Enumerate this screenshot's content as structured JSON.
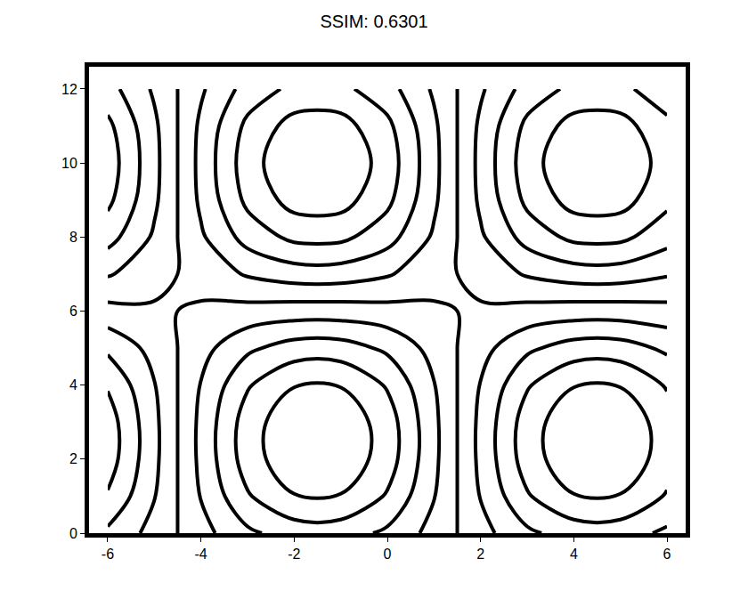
{
  "chart_data": {
    "type": "contour",
    "title": "SSIM: 0.6301",
    "color": "#000000",
    "x": [
      -6,
      -5,
      -4,
      -3,
      -2,
      -1,
      0,
      1,
      2,
      3,
      4,
      5,
      6
    ],
    "y": [
      0,
      1,
      2,
      3,
      4,
      5,
      6,
      7,
      8,
      9,
      10,
      11,
      12
    ],
    "z": [
      [
        0.36,
        0.13,
        -0.13,
        -0.36,
        -0.49,
        -0.49,
        -0.36,
        -0.13,
        0.13,
        0.36,
        0.49,
        0.49,
        0.36
      ],
      [
        0.58,
        0.21,
        -0.21,
        -0.58,
        -0.79,
        -0.79,
        -0.58,
        -0.21,
        0.21,
        0.58,
        0.79,
        0.79,
        0.58
      ],
      [
        0.7,
        0.25,
        -0.25,
        -0.7,
        -0.95,
        -0.95,
        -0.7,
        -0.25,
        0.25,
        0.7,
        0.95,
        0.95,
        0.7
      ],
      [
        0.7,
        0.25,
        -0.25,
        -0.7,
        -0.95,
        -0.95,
        -0.7,
        -0.25,
        0.25,
        0.7,
        0.95,
        0.95,
        0.7
      ],
      [
        0.58,
        0.21,
        -0.21,
        -0.58,
        -0.79,
        -0.79,
        -0.58,
        -0.21,
        0.21,
        0.58,
        0.79,
        0.79,
        0.58
      ],
      [
        0.36,
        0.13,
        -0.13,
        -0.36,
        -0.49,
        -0.49,
        -0.36,
        -0.13,
        0.13,
        0.36,
        0.49,
        0.49,
        0.36
      ],
      [
        0.07,
        0.03,
        -0.03,
        -0.07,
        -0.1,
        -0.1,
        -0.07,
        -0.03,
        0.03,
        0.07,
        0.1,
        0.1,
        0.07
      ],
      [
        -0.22,
        -0.08,
        0.08,
        0.22,
        0.3,
        0.3,
        0.22,
        0.08,
        -0.08,
        -0.22,
        -0.3,
        -0.3,
        -0.22
      ],
      [
        -0.48,
        -0.17,
        0.17,
        0.48,
        0.65,
        0.65,
        0.48,
        0.17,
        -0.17,
        -0.48,
        -0.65,
        -0.65,
        -0.48
      ],
      [
        -0.65,
        -0.24,
        0.24,
        0.65,
        0.88,
        0.88,
        0.65,
        0.24,
        -0.24,
        -0.65,
        -0.88,
        -0.88,
        -0.65
      ],
      [
        -0.71,
        -0.26,
        0.26,
        0.71,
        0.97,
        0.97,
        0.71,
        0.26,
        -0.26,
        -0.71,
        -0.97,
        -0.97,
        -0.71
      ],
      [
        -0.65,
        -0.24,
        0.24,
        0.65,
        0.88,
        0.88,
        0.65,
        0.24,
        -0.24,
        -0.65,
        -0.88,
        -0.88,
        -0.65
      ],
      [
        -0.48,
        -0.17,
        0.17,
        0.48,
        0.65,
        0.65,
        0.48,
        0.17,
        -0.17,
        -0.48,
        -0.65,
        -0.65,
        -0.48
      ]
    ],
    "xlim": [
      -6.4,
      6.4
    ],
    "ylim": [
      0,
      12.6
    ],
    "xticks": [
      -6,
      -4,
      -2,
      0,
      2,
      4,
      6
    ],
    "yticks": [
      0,
      2,
      4,
      6,
      8,
      10,
      12
    ],
    "grid": false
  }
}
